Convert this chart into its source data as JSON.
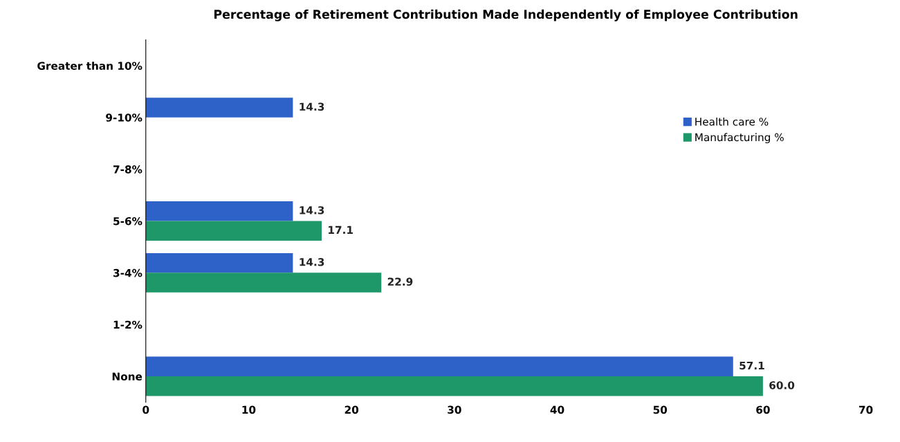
{
  "chart_data": {
    "type": "bar",
    "orientation": "horizontal",
    "title": "Percentage of Retirement Contribution Made Independently of Employee Contribution",
    "categories": [
      "Greater than 10%",
      "9-10%",
      "7-8%",
      "5-6%",
      "3-4%",
      "1-2%",
      "None"
    ],
    "series": [
      {
        "name": "Health care %",
        "color": "#2f62c9",
        "values": [
          null,
          14.3,
          null,
          14.3,
          14.3,
          null,
          57.1
        ],
        "value_labels": [
          null,
          "14.3",
          null,
          "14.3",
          "14.3",
          null,
          "57.1"
        ]
      },
      {
        "name": "Manufacturing %",
        "color": "#1e9868",
        "values": [
          null,
          null,
          null,
          17.1,
          22.9,
          null,
          60.0
        ],
        "value_labels": [
          null,
          null,
          null,
          "17.1",
          "22.9",
          null,
          "60.0"
        ]
      }
    ],
    "xlim": [
      0,
      70
    ],
    "xticks": [
      0,
      10,
      20,
      30,
      40,
      50,
      60,
      70
    ],
    "grid": false,
    "legend": "right"
  }
}
